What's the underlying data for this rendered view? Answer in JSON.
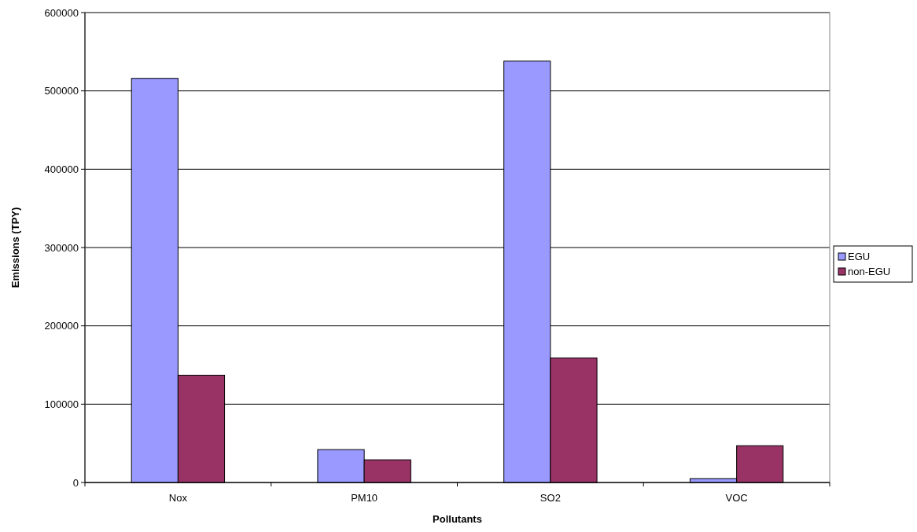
{
  "chart_data": {
    "type": "bar",
    "xlabel": "Pollutants",
    "ylabel": "Emissions (TPY)",
    "categories": [
      "Nox",
      "PM10",
      "SO2",
      "VOC"
    ],
    "series": [
      {
        "name": "EGU",
        "color": "#9999ff",
        "values": [
          516000,
          42000,
          538000,
          5000
        ]
      },
      {
        "name": "non-EGU",
        "color": "#993366",
        "values": [
          137000,
          29000,
          159000,
          47000
        ]
      }
    ],
    "ylim": [
      0,
      600000
    ],
    "yticks": [
      0,
      100000,
      200000,
      300000,
      400000,
      500000,
      600000
    ],
    "grid": "y",
    "legend": "right"
  }
}
